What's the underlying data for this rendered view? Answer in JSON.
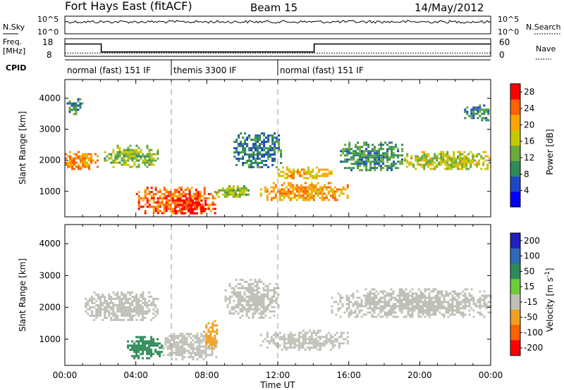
{
  "header": {
    "station": "Fort Hays East (fitACF)",
    "beam": "Beam 15",
    "date": "14/May/2012"
  },
  "noise_panel": {
    "left_label": "N.Sky",
    "right_label": "N.Search",
    "left_ticks": [
      "10^5",
      "10^0"
    ],
    "right_ticks": [
      "10^5",
      "10^0"
    ]
  },
  "freq_panel": {
    "left_label_1": "Freq.",
    "left_label_2": "[MHz]",
    "right_label": "Nave",
    "left_ticks": [
      "18",
      "8"
    ],
    "right_ticks": [
      "60",
      "0"
    ],
    "freq_steps": [
      {
        "t": 0.0,
        "v": 15.0
      },
      {
        "t": 2.05,
        "v": 15.0
      },
      {
        "t": 2.05,
        "v": 10.5
      },
      {
        "t": 14.05,
        "v": 10.5
      },
      {
        "t": 14.05,
        "v": 15.0
      },
      {
        "t": 24.0,
        "v": 15.0
      }
    ],
    "nave_level": 11
  },
  "cpid": {
    "label": "CPID",
    "segments": [
      {
        "start_h": 0,
        "label": "normal (fast) 151 IF"
      },
      {
        "start_h": 6,
        "label": "themis 3300 IF"
      },
      {
        "start_h": 12,
        "label": "normal (fast) 151 IF"
      }
    ]
  },
  "chart_data": [
    {
      "type": "heatmap",
      "title": "Power",
      "quantity": "Power",
      "xlabel": "Time UT",
      "ylabel": "Slant Range [km]",
      "xlim": [
        0,
        24
      ],
      "ylim": [
        180,
        4600
      ],
      "x_ticks": [
        "00:00",
        "04:00",
        "08:00",
        "12:00",
        "16:00",
        "20:00",
        "00:00"
      ],
      "y_ticks": [
        1000,
        2000,
        3000,
        4000
      ],
      "colorbar": {
        "label": "Power [dB]",
        "ticks": [
          4,
          8,
          12,
          16,
          20,
          24,
          28
        ],
        "range": [
          0,
          30
        ],
        "colors": [
          "#0000ff",
          "#1e46c8",
          "#2e8b57",
          "#6aaa3a",
          "#c8c800",
          "#ffa500",
          "#ff6000",
          "#ff0000"
        ]
      },
      "regions": [
        {
          "t0": 0.1,
          "t1": 1.0,
          "r0": 3500,
          "r1": 4000,
          "value": 10
        },
        {
          "t0": 0.0,
          "t1": 1.8,
          "r0": 1700,
          "r1": 2300,
          "value": 22
        },
        {
          "t0": 2.2,
          "t1": 5.2,
          "r0": 1800,
          "r1": 2500,
          "value": 14
        },
        {
          "t0": 4.0,
          "t1": 8.5,
          "r0": 300,
          "r1": 1150,
          "value": 24
        },
        {
          "t0": 6.2,
          "t1": 8.0,
          "r0": 300,
          "r1": 800,
          "value": 29
        },
        {
          "t0": 8.5,
          "t1": 10.5,
          "r0": 800,
          "r1": 1200,
          "value": 14
        },
        {
          "t0": 9.5,
          "t1": 12.2,
          "r0": 1800,
          "r1": 2900,
          "value": 8
        },
        {
          "t0": 11.0,
          "t1": 16.0,
          "r0": 700,
          "r1": 1300,
          "value": 21
        },
        {
          "t0": 12.0,
          "t1": 15.0,
          "r0": 1400,
          "r1": 1800,
          "value": 19
        },
        {
          "t0": 15.5,
          "t1": 19.0,
          "r0": 1700,
          "r1": 2600,
          "value": 10
        },
        {
          "t0": 19.0,
          "t1": 24.0,
          "r0": 1700,
          "r1": 2300,
          "value": 16
        },
        {
          "t0": 22.5,
          "t1": 24.0,
          "r0": 3300,
          "r1": 3800,
          "value": 9
        }
      ]
    },
    {
      "type": "heatmap",
      "title": "Velocity",
      "quantity": "Velocity",
      "xlabel": "Time UT",
      "ylabel": "Slant Range [km]",
      "xlim": [
        0,
        24
      ],
      "ylim": [
        180,
        4600
      ],
      "x_ticks": [
        "00:00",
        "04:00",
        "08:00",
        "12:00",
        "16:00",
        "20:00",
        "00:00"
      ],
      "y_ticks": [
        1000,
        2000,
        3000,
        4000
      ],
      "colorbar": {
        "label": "Velocity [m s^-1]",
        "ticks": [
          200,
          100,
          50,
          15,
          -15,
          -50,
          -100,
          -200
        ],
        "colors": [
          "#2020c0",
          "#2f6ab8",
          "#2e8b57",
          "#6ccc3a",
          "#c0c0b8",
          "#f0a020",
          "#ff6000",
          "#ff0000"
        ]
      },
      "regions": [
        {
          "t0": 1.0,
          "t1": 5.2,
          "r0": 1600,
          "r1": 2500,
          "value": 0
        },
        {
          "t0": 9.0,
          "t1": 12.0,
          "r0": 1700,
          "r1": 2900,
          "value": 0
        },
        {
          "t0": 3.5,
          "t1": 5.5,
          "r0": 400,
          "r1": 1100,
          "value": 60
        },
        {
          "t0": 5.5,
          "t1": 8.5,
          "r0": 400,
          "r1": 1200,
          "value": 0
        },
        {
          "t0": 7.8,
          "t1": 8.6,
          "r0": 700,
          "r1": 1600,
          "value": -60
        },
        {
          "t0": 11.0,
          "t1": 16.0,
          "r0": 700,
          "r1": 1300,
          "value": 0
        },
        {
          "t0": 15.0,
          "t1": 24.0,
          "r0": 1700,
          "r1": 2600,
          "value": 0
        }
      ]
    }
  ]
}
